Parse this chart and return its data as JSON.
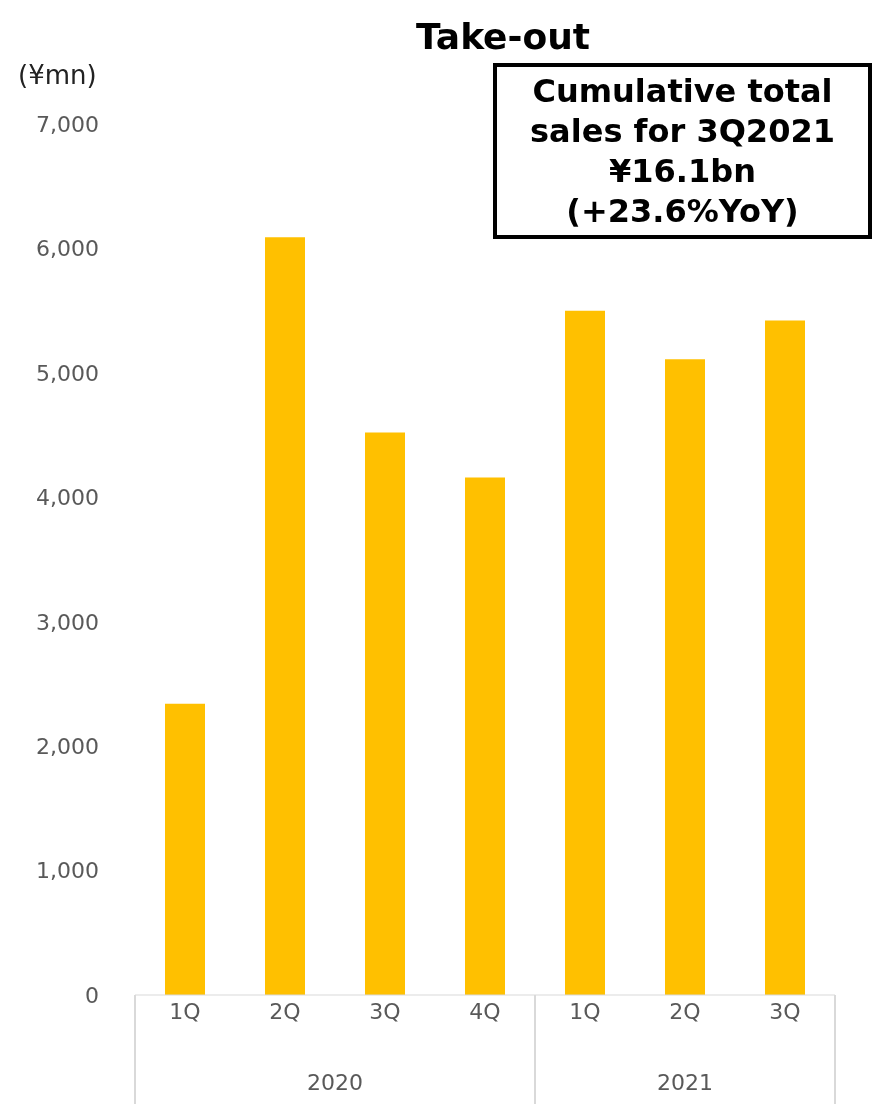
{
  "chart_data": {
    "type": "bar",
    "title": "Take-out",
    "ylabel": "(¥mn)",
    "categories": [
      "1Q",
      "2Q",
      "3Q",
      "4Q",
      "1Q",
      "2Q",
      "3Q"
    ],
    "values": [
      2340,
      6090,
      4520,
      4160,
      5500,
      5110,
      5420
    ],
    "color": "#ffc000",
    "ylim": [
      0,
      7000
    ],
    "yticks": [
      {
        "value": 0,
        "label": "0"
      },
      {
        "value": 1000,
        "label": "1,000"
      },
      {
        "value": 2000,
        "label": "2,000"
      },
      {
        "value": 3000,
        "label": "3,000"
      },
      {
        "value": 4000,
        "label": "4,000"
      },
      {
        "value": 5000,
        "label": "5,000"
      },
      {
        "value": 6000,
        "label": "6,000"
      },
      {
        "value": 7000,
        "label": "7,000"
      }
    ],
    "grid": false,
    "legend": false,
    "annotations": [
      "Cumulative total\nsales for 3Q2021\n¥16.1bn\n(+23.6%YoY)",
      "2020",
      "2021"
    ]
  }
}
